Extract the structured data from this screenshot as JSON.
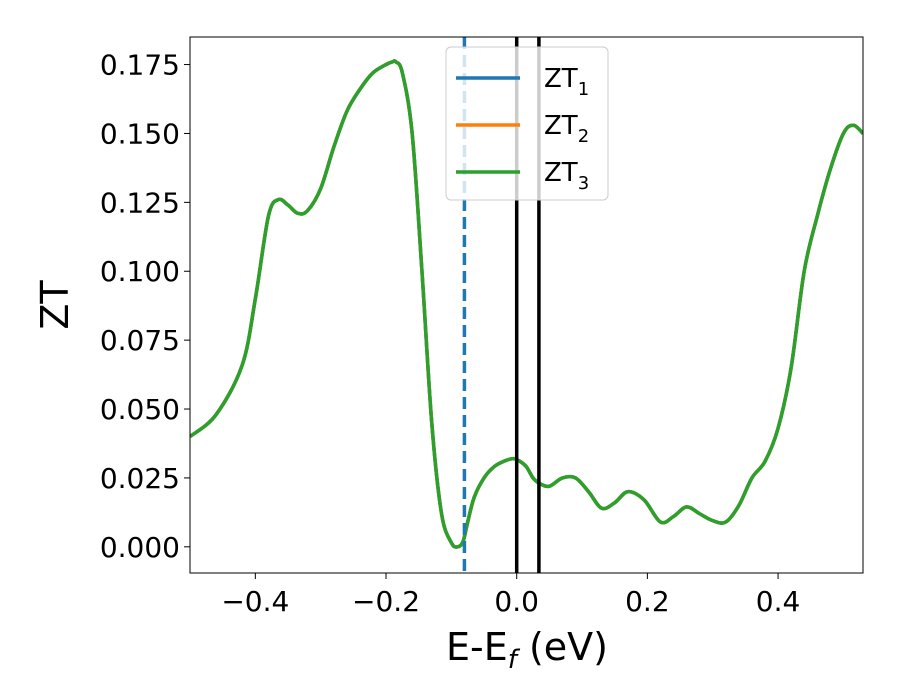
{
  "chart_data": {
    "type": "line",
    "xlabel": "E-E",
    "xlabel_sub": "f",
    "xlabel_unit": " (eV)",
    "ylabel": "ZT",
    "xlim": [
      -0.5,
      0.53
    ],
    "ylim": [
      -0.0095,
      0.185
    ],
    "xticks": [
      -0.4,
      -0.2,
      0.0,
      0.2,
      0.4
    ],
    "xtick_labels": [
      "−0.4",
      "−0.2",
      "0.0",
      "0.2",
      "0.4"
    ],
    "yticks": [
      0.0,
      0.025,
      0.05,
      0.075,
      0.1,
      0.125,
      0.15,
      0.175
    ],
    "ytick_labels": [
      "0.000",
      "0.025",
      "0.050",
      "0.075",
      "0.100",
      "0.125",
      "0.150",
      "0.175"
    ],
    "grid": false,
    "legend_position": "top-center",
    "vlines": [
      {
        "x": -0.08,
        "color": "#1f77b4",
        "style": "dashed"
      },
      {
        "x": 0.0,
        "color": "#000000",
        "style": "solid"
      },
      {
        "x": 0.034,
        "color": "#000000",
        "style": "solid"
      }
    ],
    "series": [
      {
        "name": "ZT",
        "sub": "1",
        "color": "#1f77b4"
      },
      {
        "name": "ZT",
        "sub": "2",
        "color": "#ff7f0e"
      },
      {
        "name": "ZT",
        "sub": "3",
        "color": "#2ca02c"
      }
    ],
    "x": [
      -0.5,
      -0.46,
      -0.42,
      -0.4,
      -0.38,
      -0.365,
      -0.35,
      -0.335,
      -0.32,
      -0.3,
      -0.28,
      -0.26,
      -0.24,
      -0.22,
      -0.2,
      -0.19,
      -0.185,
      -0.175,
      -0.16,
      -0.145,
      -0.13,
      -0.115,
      -0.1,
      -0.09,
      -0.082,
      -0.075,
      -0.065,
      -0.05,
      -0.035,
      -0.02,
      -0.005,
      0.005,
      0.015,
      0.025,
      0.035,
      0.05,
      0.07,
      0.09,
      0.11,
      0.13,
      0.15,
      0.17,
      0.195,
      0.22,
      0.24,
      0.26,
      0.28,
      0.3,
      0.32,
      0.34,
      0.36,
      0.38,
      0.4,
      0.42,
      0.44,
      0.46,
      0.48,
      0.5,
      0.515,
      0.53
    ],
    "y": [
      0.04,
      0.048,
      0.066,
      0.09,
      0.12,
      0.126,
      0.124,
      0.121,
      0.122,
      0.13,
      0.145,
      0.158,
      0.166,
      0.172,
      0.175,
      0.176,
      0.176,
      0.172,
      0.15,
      0.1,
      0.045,
      0.012,
      0.0015,
      0.0,
      0.002,
      0.009,
      0.018,
      0.025,
      0.029,
      0.031,
      0.032,
      0.031,
      0.029,
      0.025,
      0.023,
      0.022,
      0.025,
      0.025,
      0.02,
      0.014,
      0.016,
      0.02,
      0.017,
      0.009,
      0.011,
      0.0145,
      0.012,
      0.0095,
      0.009,
      0.015,
      0.025,
      0.031,
      0.043,
      0.065,
      0.1,
      0.12,
      0.137,
      0.15,
      0.153,
      0.15
    ]
  }
}
